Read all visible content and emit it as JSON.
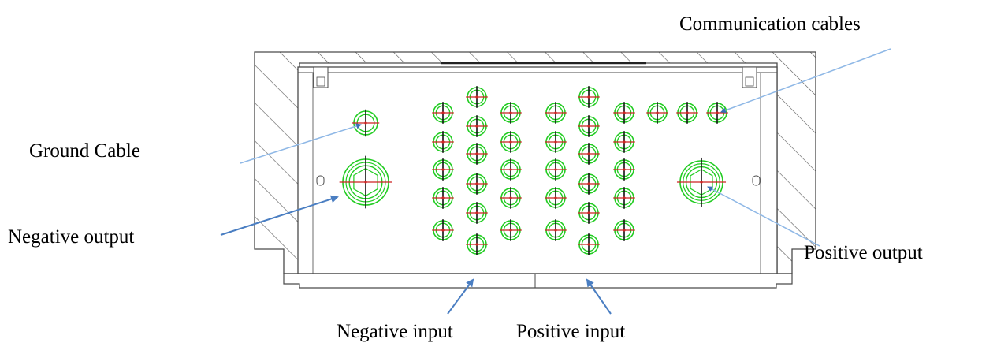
{
  "labels": {
    "communication": "Communication cables",
    "ground": "Ground Cable",
    "negative_output": "Negative output",
    "positive_output": "Positive output",
    "negative_input": "Negative input",
    "positive_input": "Positive input"
  },
  "colors": {
    "outline": "#4a4a4a",
    "hatch": "#555555",
    "gland": "#22cc22",
    "cross_v": "#111111",
    "cross_h": "#cc2222",
    "leader": "#8fb8e6",
    "arrow": "#4a7ec2"
  },
  "glands": {
    "cable_glands_counted": 43,
    "large_glands": 2,
    "ground_gland": 1,
    "communication_glands": 3
  }
}
